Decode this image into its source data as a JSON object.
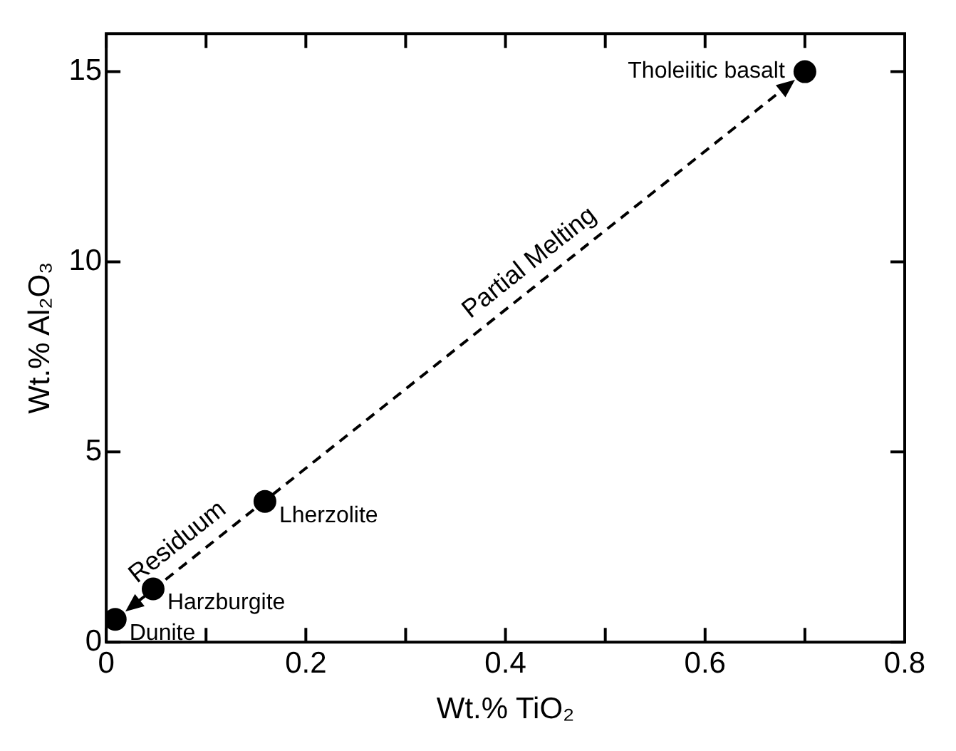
{
  "chart_data": {
    "type": "scatter",
    "xlabel": "Wt.% TiO₂",
    "ylabel": "Wt.% Al₂O₃",
    "xlim": [
      0,
      0.8
    ],
    "ylim": [
      0,
      16
    ],
    "xticks": [
      0,
      {
        "value": 0.1,
        "label": null
      },
      {
        "value": 0.2,
        "label": "0.2"
      },
      {
        "value": 0.3,
        "label": null
      },
      {
        "value": 0.4,
        "label": "0.4"
      },
      {
        "value": 0.5,
        "label": null
      },
      {
        "value": 0.6,
        "label": "0.6"
      },
      {
        "value": 0.7,
        "label": null
      },
      {
        "value": 0.8,
        "label": "0.8"
      }
    ],
    "yticks": [
      0,
      5,
      10,
      15
    ],
    "grid": false,
    "legend": false,
    "marker": "circle",
    "series": [
      {
        "color": "#000000",
        "x": [
          0.009,
          0.047,
          0.159,
          0.7
        ],
        "values": [
          0.6,
          1.4,
          3.7,
          15.0
        ]
      }
    ],
    "annotations": [
      {
        "text": "Dunite",
        "x": 0.009,
        "y": 0.6
      },
      {
        "text": "Harzburgite",
        "x": 0.047,
        "y": 1.4
      },
      {
        "text": "Lherzolite",
        "x": 0.159,
        "y": 3.7
      },
      {
        "text": "Tholeiitic basalt",
        "x": 0.7,
        "y": 15.0
      },
      "Partial Melting",
      "Residuum"
    ]
  }
}
